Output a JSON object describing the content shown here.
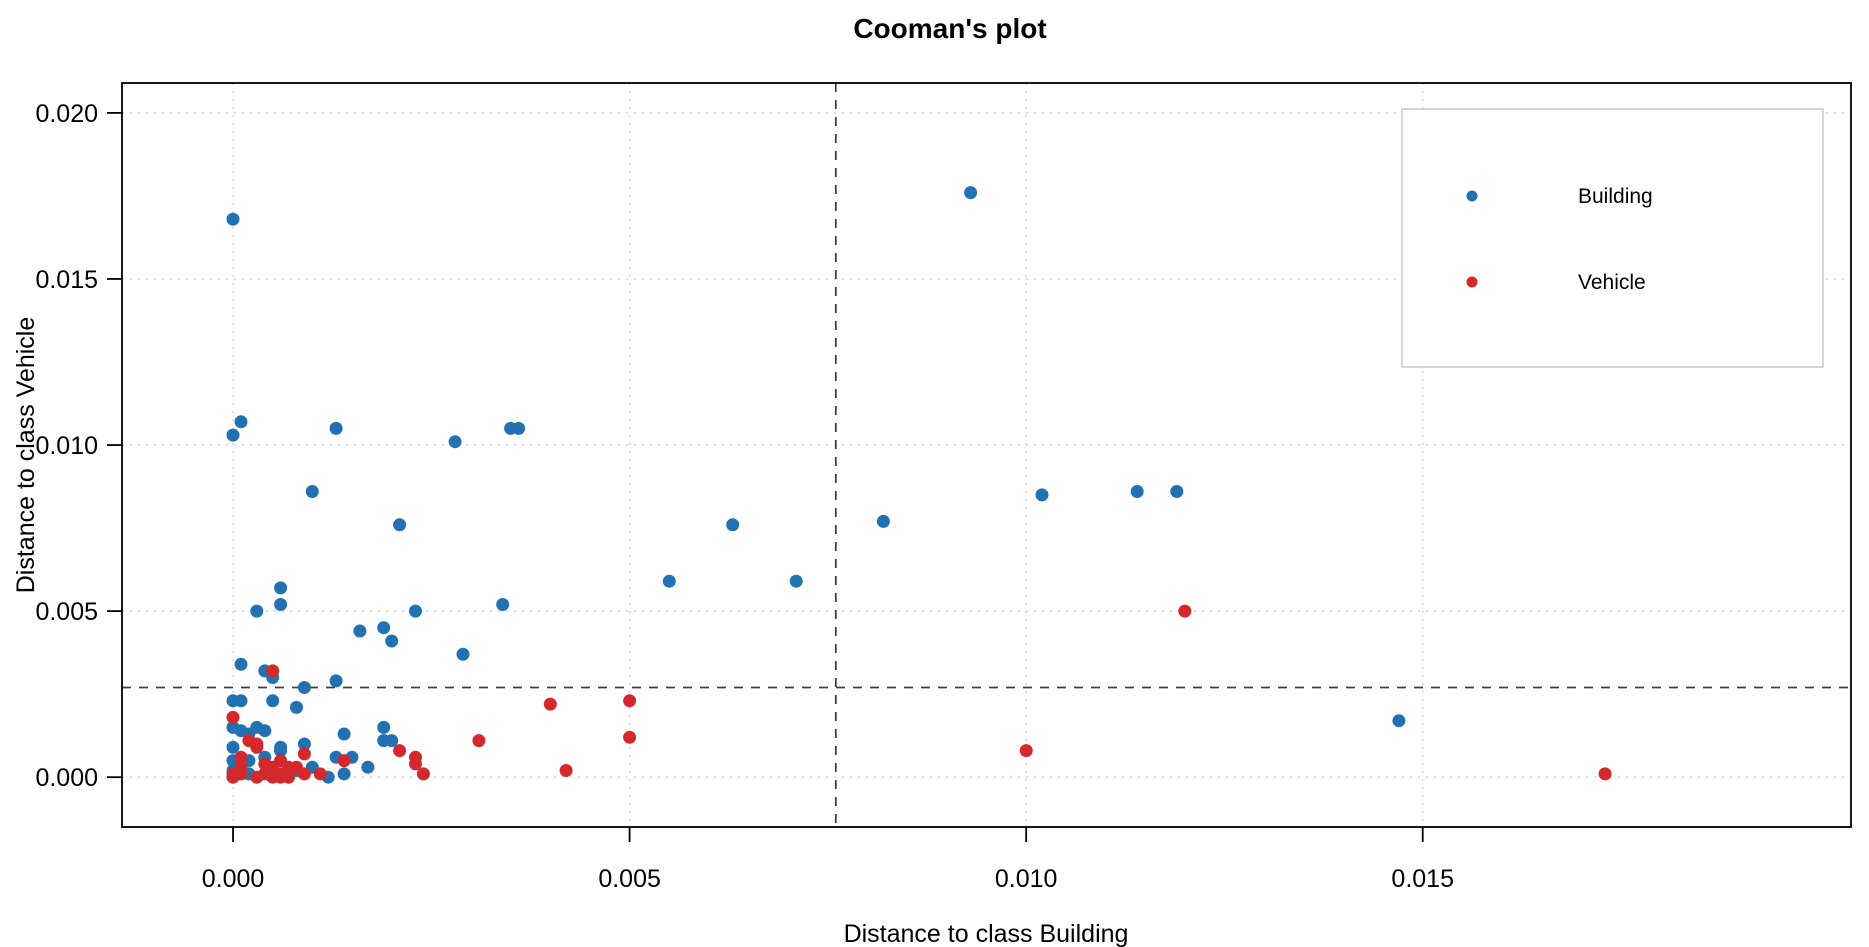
{
  "figure": {
    "title": "Cooman's plot"
  },
  "chart_data": {
    "type": "scatter",
    "title": "Cooman's plot",
    "xlabel": "Distance to class Building",
    "ylabel": "Distance to class Vehicle",
    "xlim": [
      -0.0014,
      0.0204
    ],
    "ylim": [
      -0.0015,
      0.0209
    ],
    "x_ticks": [
      0.0,
      0.005,
      0.01,
      0.015
    ],
    "x_tick_labels": [
      "0.000",
      "0.005",
      "0.010",
      "0.015"
    ],
    "y_ticks": [
      0.0,
      0.005,
      0.01,
      0.015,
      0.02
    ],
    "y_tick_labels": [
      "0.000",
      "0.005",
      "0.010",
      "0.015",
      "0.020"
    ],
    "grid": true,
    "grid_style": "dotted",
    "legend_position": "top-right",
    "thresholds": {
      "vertical_x": 0.0076,
      "horizontal_y": 0.0027,
      "style": "dashed",
      "color": "#3f3f3f"
    },
    "colors": {
      "building": "#2272b3",
      "vehicle": "#d3292c",
      "gridline": "#d4d4d4",
      "legend_border": "#c8c8c8",
      "axis": "#000000"
    },
    "series": [
      {
        "name": "Building",
        "color": "#2272b3",
        "points": [
          [
            0.0,
            0.0168
          ],
          [
            0.0001,
            0.0107
          ],
          [
            0.0,
            0.0103
          ],
          [
            0.0013,
            0.0105
          ],
          [
            0.0028,
            0.0101
          ],
          [
            0.0035,
            0.0105
          ],
          [
            0.0036,
            0.0105
          ],
          [
            0.0093,
            0.0176
          ],
          [
            0.001,
            0.0086
          ],
          [
            0.0021,
            0.0076
          ],
          [
            0.0063,
            0.0076
          ],
          [
            0.0082,
            0.0077
          ],
          [
            0.0102,
            0.0085
          ],
          [
            0.0114,
            0.0086
          ],
          [
            0.0119,
            0.0086
          ],
          [
            0.0055,
            0.0059
          ],
          [
            0.0071,
            0.0059
          ],
          [
            0.0006,
            0.0057
          ],
          [
            0.0006,
            0.0052
          ],
          [
            0.0003,
            0.005
          ],
          [
            0.0023,
            0.005
          ],
          [
            0.0034,
            0.0052
          ],
          [
            0.0016,
            0.0044
          ],
          [
            0.0019,
            0.0045
          ],
          [
            0.002,
            0.0041
          ],
          [
            0.0029,
            0.0037
          ],
          [
            0.0001,
            0.0034
          ],
          [
            0.0004,
            0.0032
          ],
          [
            0.0005,
            0.003
          ],
          [
            0.0009,
            0.0027
          ],
          [
            0.0013,
            0.0029
          ],
          [
            0.0,
            0.0023
          ],
          [
            0.0001,
            0.0023
          ],
          [
            0.0005,
            0.0023
          ],
          [
            0.0008,
            0.0021
          ],
          [
            0.0,
            0.0015
          ],
          [
            0.0001,
            0.0014
          ],
          [
            0.0002,
            0.0013
          ],
          [
            0.0003,
            0.0015
          ],
          [
            0.0004,
            0.0014
          ],
          [
            0.0014,
            0.0013
          ],
          [
            0.0019,
            0.0015
          ],
          [
            0.0019,
            0.0011
          ],
          [
            0.002,
            0.0011
          ],
          [
            0.0,
            0.0009
          ],
          [
            0.0006,
            0.0008
          ],
          [
            0.0006,
            0.0009
          ],
          [
            0.0009,
            0.001
          ],
          [
            0.0004,
            0.0006
          ],
          [
            0.0002,
            0.0005
          ],
          [
            0.0013,
            0.0006
          ],
          [
            0.0015,
            0.0006
          ],
          [
            0.001,
            0.0003
          ],
          [
            0.0017,
            0.0003
          ],
          [
            0.0,
            0.0005
          ],
          [
            0.0,
            0.0002
          ],
          [
            0.0002,
            0.0001
          ],
          [
            0.0008,
            0.0002
          ],
          [
            0.0012,
            0.0
          ],
          [
            0.0014,
            0.0001
          ],
          [
            0.0147,
            0.0017
          ]
        ]
      },
      {
        "name": "Vehicle",
        "color": "#d3292c",
        "points": [
          [
            0.0005,
            0.0032
          ],
          [
            0.0,
            0.0018
          ],
          [
            0.0002,
            0.0011
          ],
          [
            0.0003,
            0.001
          ],
          [
            0.0003,
            0.0009
          ],
          [
            0.0009,
            0.0007
          ],
          [
            0.0001,
            0.0006
          ],
          [
            0.0001,
            0.0003
          ],
          [
            0.0004,
            0.0004
          ],
          [
            0.0005,
            0.0003
          ],
          [
            0.0006,
            0.0005
          ],
          [
            0.0008,
            0.0003
          ],
          [
            0.0,
            0.0001
          ],
          [
            0.0001,
            0.0001
          ],
          [
            0.0,
            0.0
          ],
          [
            0.0003,
            0.0
          ],
          [
            0.0004,
            0.0001
          ],
          [
            0.0005,
            0.0
          ],
          [
            0.0006,
            0.0001
          ],
          [
            0.0006,
            0.0
          ],
          [
            0.0007,
            0.0
          ],
          [
            0.0007,
            0.0003
          ],
          [
            0.0009,
            0.0001
          ],
          [
            0.0011,
            0.0001
          ],
          [
            0.0014,
            0.0005
          ],
          [
            0.0021,
            0.0008
          ],
          [
            0.0023,
            0.0006
          ],
          [
            0.0023,
            0.0004
          ],
          [
            0.0024,
            0.0001
          ],
          [
            0.0031,
            0.0011
          ],
          [
            0.004,
            0.0022
          ],
          [
            0.005,
            0.0023
          ],
          [
            0.005,
            0.0012
          ],
          [
            0.0042,
            0.0002
          ],
          [
            0.01,
            0.0008
          ],
          [
            0.012,
            0.005
          ],
          [
            0.0173,
            0.0001
          ]
        ]
      }
    ]
  }
}
